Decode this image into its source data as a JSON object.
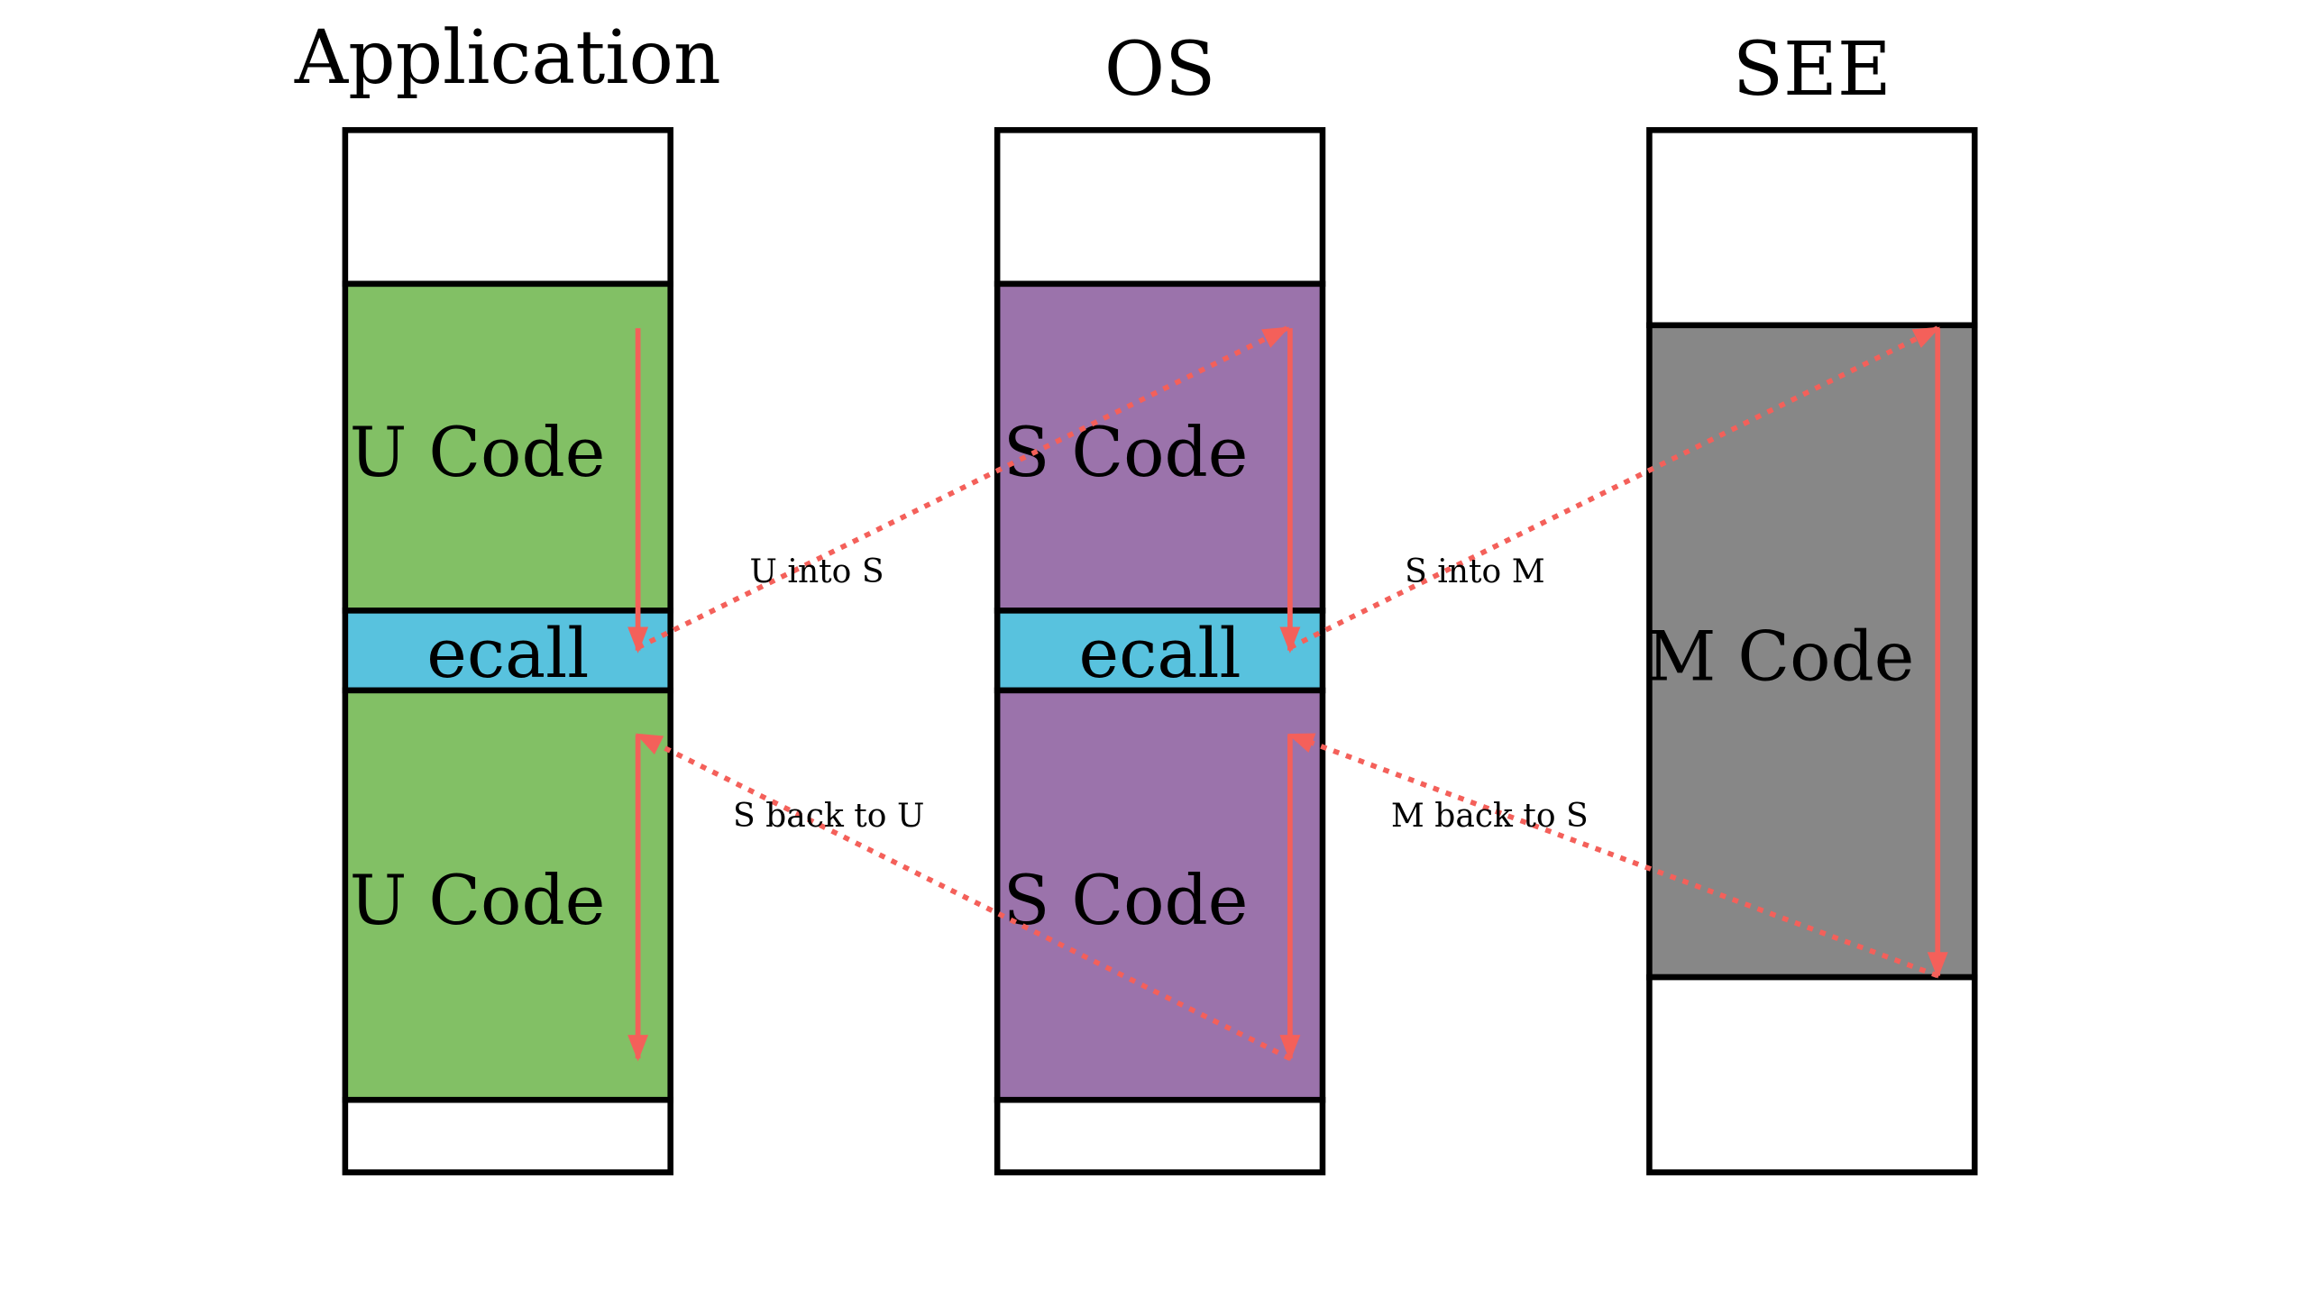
{
  "titles": {
    "application": "Application",
    "os": "OS",
    "see": "SEE"
  },
  "blocks": {
    "app_top": "U Code",
    "app_ecall": "ecall",
    "app_bottom": "U Code",
    "os_top": "S Code",
    "os_ecall": "ecall",
    "os_bottom": "S Code",
    "see_mid": "M Code"
  },
  "transitions": {
    "u_into_s": "U into S",
    "s_into_m": "S into M",
    "s_back_to_u": "S back to U",
    "m_back_to_s": "M back to S"
  },
  "colors": {
    "user": "#82c065",
    "supervisor": "#9b73ab",
    "machine": "#878787",
    "ecall": "#58c2de",
    "arrow": "#f4605a"
  }
}
